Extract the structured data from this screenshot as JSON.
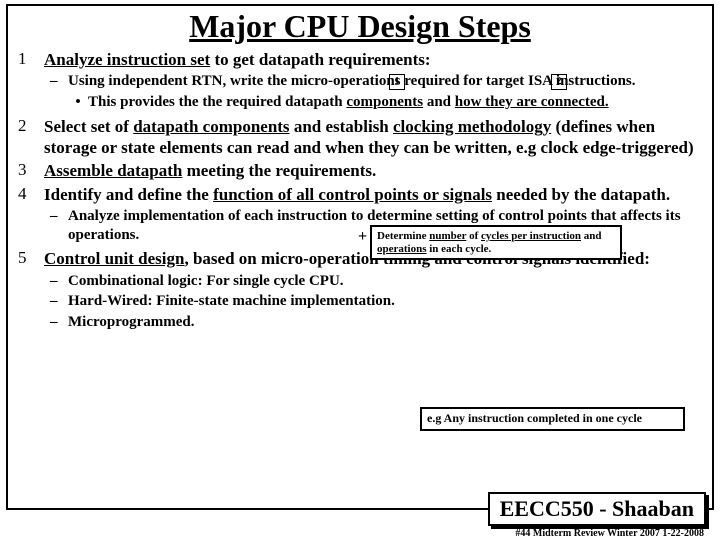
{
  "title": "Major CPU Design Steps",
  "items": {
    "n1": "1",
    "t1a": "Analyze instruction set",
    "t1b": " to get datapath requirements:",
    "s1a": "Using independent RTN, write the micro-operations required for target ISA instructions.",
    "box1": "1",
    "box2": "2",
    "s1b_a": "This provides the the required datapath ",
    "s1b_u1": "components",
    "s1b_b": " and ",
    "s1b_u2": "how they are connected.",
    "n2": "2",
    "t2a": "Select set of ",
    "t2u1": "datapath components",
    "t2b": " and establish ",
    "t2u2": "clocking methodology",
    "t2c": " (defines when storage or state elements can read and when they can be written, e.g clock edge-triggered)",
    "n3": "3",
    "t3u": "Assemble datapath",
    "t3b": " meeting the requirements.",
    "n4": "4",
    "t4a": "Identify and define the ",
    "t4u": "function of all control points or signals",
    "t4b": " needed by the datapath.",
    "s4": "Analyze implementation of each instruction to determine setting of control points that affects its operations.",
    "n5": "5",
    "t5u": "Control unit design",
    "t5b": ", based on micro-operation timing and control signals identified:",
    "s5a": "Combinational logic: For single cycle CPU.",
    "s5b": "Hard-Wired:  Finite-state machine implementation.",
    "s5c": "Microprogrammed."
  },
  "callout1_a": "Determine ",
  "callout1_u1": "number",
  "callout1_b": " of ",
  "callout1_u2": "cycles per instruction",
  "callout1_c": " and ",
  "callout1_u3": "operations",
  "callout1_d": " in each cycle.",
  "callout2": "e.g Any instruction completed in one cycle",
  "course": "EECC550 - Shaaban",
  "footer": "#44   Midterm Review   Winter 2007   1-22-2008",
  "plus": "+"
}
